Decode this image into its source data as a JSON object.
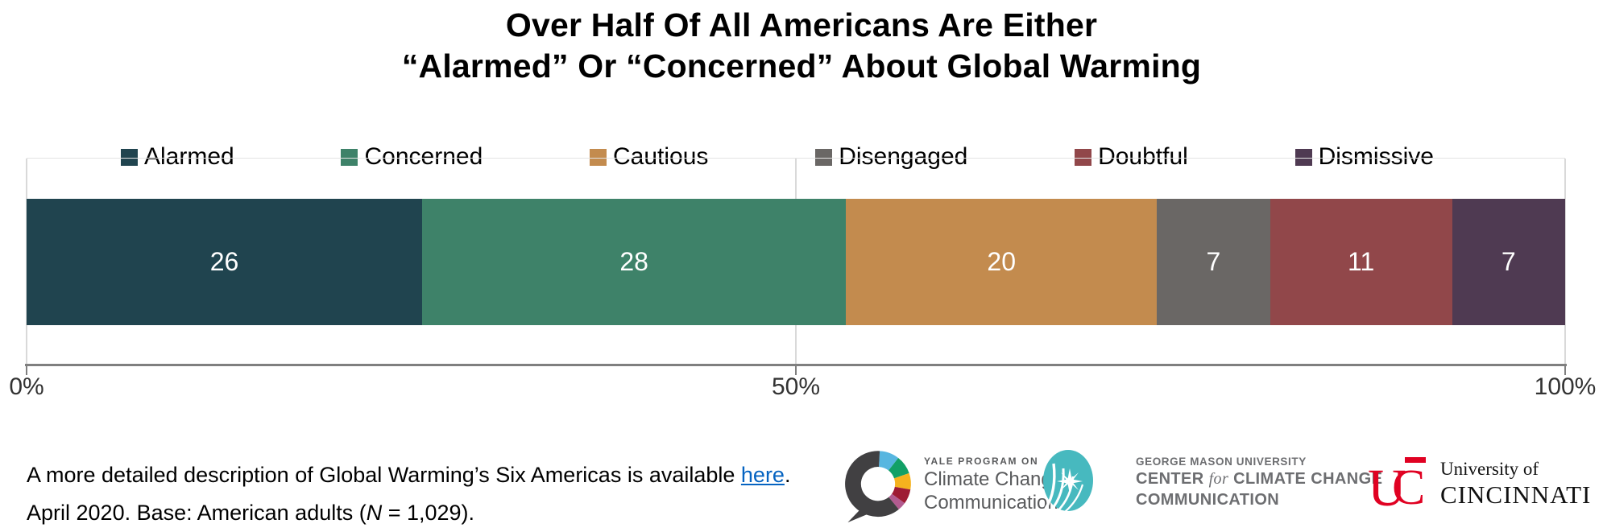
{
  "title": {
    "line1": "Over Half Of All Americans Are Either",
    "line2": "“Alarmed” Or “Concerned” About Global Warming"
  },
  "chart_data": {
    "type": "bar",
    "subtype": "stacked-horizontal-100pct",
    "categories": [
      "Alarmed",
      "Concerned",
      "Cautious",
      "Disengaged",
      "Doubtful",
      "Dismissive"
    ],
    "values": [
      26,
      28,
      20,
      7,
      11,
      7
    ],
    "colors": [
      "#20444f",
      "#3e8269",
      "#c38b4e",
      "#6a6765",
      "#91474a",
      "#4f3a52"
    ],
    "value_label_color": "#ffffff",
    "x_axis": {
      "range": [
        0,
        100
      ],
      "ticks": [
        "0%",
        "50%",
        "100%"
      ],
      "tick_positions": [
        0,
        50,
        100
      ],
      "axis_color": "#7f7f7f",
      "gridline_color": "#d9d9d9"
    },
    "legend_position": "top",
    "grid": "vertical-only"
  },
  "footnote": {
    "line1_prefix": "A more detailed description of Global Warming’s Six Americas is available ",
    "link_text": "here",
    "line1_suffix": ".",
    "line2_prefix": "April 2020. Base: American adults (",
    "line2_italic": "N",
    "line2_suffix": " = 1,029).",
    "link_color": "#0563c1"
  },
  "logos": {
    "yale": {
      "small": "YALE PROGRAM ON",
      "line1": "Climate Change",
      "line2": "Communication",
      "icon_colors": [
        "#414042",
        "#57b6e0",
        "#12a066",
        "#f5b21e",
        "#9e1b34",
        "#b25b90"
      ]
    },
    "gmu": {
      "small": "GEORGE MASON UNIVERSITY",
      "mid_pre": "CENTER ",
      "mid_italic": "for",
      "mid_post": " CLIMATE CHANGE",
      "line3": "COMMUNICATION",
      "icon_color": "#47b9bf"
    },
    "uc": {
      "monogram": "UC",
      "small": "University of",
      "big": "CINCINNATI",
      "brand_red": "#e00122"
    }
  }
}
